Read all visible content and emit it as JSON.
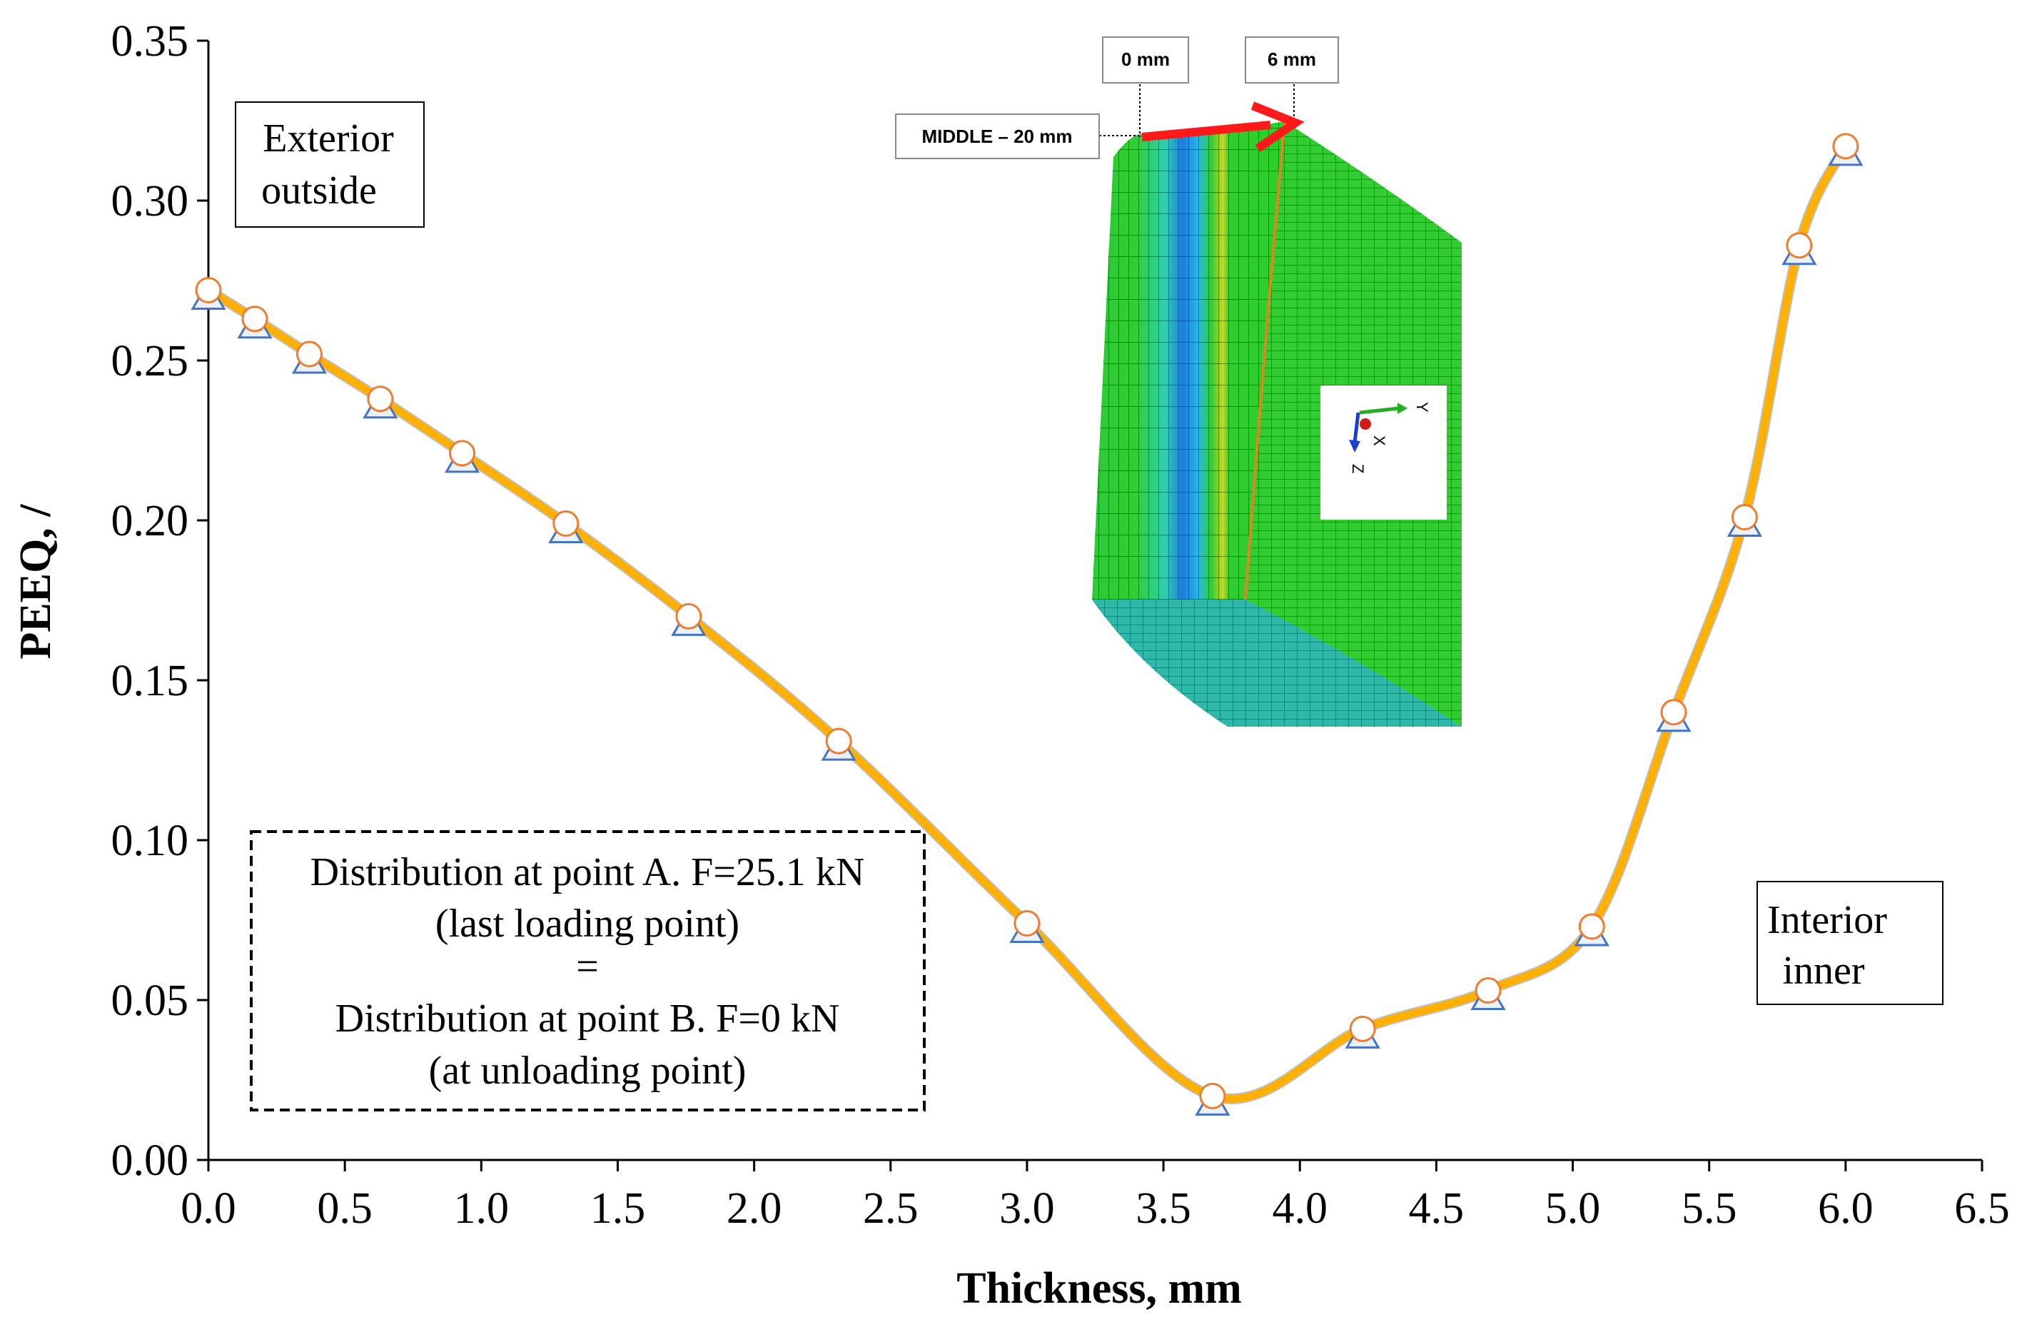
{
  "chart_data": {
    "type": "line",
    "title": "",
    "xlabel": "Thickness, mm",
    "ylabel": "PEEQ, /",
    "xlim": [
      0.0,
      6.5
    ],
    "ylim": [
      0.0,
      0.35
    ],
    "xticks": [
      "0.0",
      "0.5",
      "1.0",
      "1.5",
      "2.0",
      "2.5",
      "3.0",
      "3.5",
      "4.0",
      "4.5",
      "5.0",
      "5.5",
      "6.0",
      "6.5"
    ],
    "yticks": [
      "0.00",
      "0.05",
      "0.10",
      "0.15",
      "0.20",
      "0.25",
      "0.30",
      "0.35"
    ],
    "grid": false,
    "series": [
      {
        "name": "Distribution at point A. F=25.1 kN",
        "marker": "circle",
        "color": "#FFB000",
        "x": [
          0.0,
          0.17,
          0.37,
          0.63,
          0.93,
          1.31,
          1.76,
          2.31,
          3.0,
          3.68,
          4.23,
          4.69,
          5.07,
          5.37,
          5.63,
          5.83,
          6.0
        ],
        "y": [
          0.272,
          0.263,
          0.252,
          0.238,
          0.221,
          0.199,
          0.17,
          0.131,
          0.074,
          0.02,
          0.041,
          0.053,
          0.073,
          0.14,
          0.201,
          0.286,
          0.317
        ]
      },
      {
        "name": "Distribution at point B. F=0 kN",
        "marker": "triangle",
        "color": "#4472C4",
        "x": [
          0.0,
          0.17,
          0.37,
          0.63,
          0.93,
          1.31,
          1.76,
          2.31,
          3.0,
          3.68,
          4.23,
          4.69,
          5.07,
          5.37,
          5.63,
          5.83,
          6.0
        ],
        "y": [
          0.272,
          0.263,
          0.252,
          0.238,
          0.221,
          0.199,
          0.17,
          0.131,
          0.074,
          0.02,
          0.041,
          0.053,
          0.073,
          0.14,
          0.201,
          0.286,
          0.317
        ]
      }
    ],
    "annotations": {
      "exterior": [
        "Exterior",
        "outside"
      ],
      "interior": [
        "Interior",
        "inner"
      ],
      "legend_box": [
        "Distribution at point A. F=25.1 kN",
        "(last loading point)",
        "=",
        "Distribution at point B. F=0 kN",
        "(at unloading point)"
      ]
    }
  },
  "inset": {
    "label_0mm": "0 mm",
    "label_6mm": "6 mm",
    "label_middle": "MIDDLE – 20 mm",
    "axis_y": "Y",
    "axis_x": "X",
    "axis_z": "Z"
  },
  "colors": {
    "line": "#FFB000",
    "marker_circle_fill": "#FFFFFF",
    "marker_circle_edge": "#ED7D31",
    "marker_triangle_edge": "#4472C4",
    "mesh_green": "#33CC33",
    "mesh_blue": "#1E7BE0",
    "arrow_red": "#FF1A1A"
  }
}
